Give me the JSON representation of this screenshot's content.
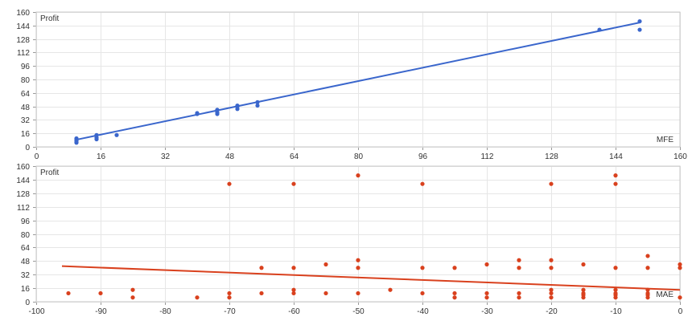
{
  "chart_data": [
    {
      "type": "scatter",
      "ylabel": "Profit",
      "xlabel": "MFE",
      "xlim": [
        0,
        160
      ],
      "ylim": [
        0,
        160
      ],
      "xticks": [
        0,
        16,
        32,
        48,
        64,
        80,
        96,
        112,
        128,
        144,
        160
      ],
      "yticks": [
        0,
        16,
        32,
        48,
        64,
        80,
        96,
        112,
        128,
        144,
        160
      ],
      "grid": true,
      "point_color": "#3a66cc",
      "line_color": "#3a66cc",
      "points": [
        [
          10,
          5
        ],
        [
          10,
          7
        ],
        [
          10,
          9
        ],
        [
          10,
          10
        ],
        [
          15,
          9
        ],
        [
          15,
          11
        ],
        [
          15,
          14
        ],
        [
          20,
          14
        ],
        [
          40,
          39
        ],
        [
          40,
          40
        ],
        [
          45,
          39
        ],
        [
          45,
          41
        ],
        [
          45,
          44
        ],
        [
          50,
          45
        ],
        [
          50,
          48
        ],
        [
          50,
          49
        ],
        [
          55,
          49
        ],
        [
          55,
          53
        ],
        [
          140,
          139
        ],
        [
          150,
          139
        ],
        [
          150,
          149
        ]
      ],
      "trend": {
        "x": [
          10,
          150
        ],
        "y": [
          8.5,
          147.5
        ]
      }
    },
    {
      "type": "scatter",
      "ylabel": "Profit",
      "xlabel": "MAE",
      "xlim": [
        -100,
        0
      ],
      "ylim": [
        0,
        160
      ],
      "xticks": [
        -100,
        -90,
        -80,
        -70,
        -60,
        -50,
        -40,
        -30,
        -20,
        -10,
        0
      ],
      "yticks": [
        0,
        16,
        32,
        48,
        64,
        80,
        96,
        112,
        128,
        144,
        160
      ],
      "grid": true,
      "point_color": "#d9411e",
      "line_color": "#d9411e",
      "points": [
        [
          -95,
          10
        ],
        [
          -90,
          10
        ],
        [
          -85,
          5
        ],
        [
          -85,
          14
        ],
        [
          -75,
          5
        ],
        [
          -70,
          5
        ],
        [
          -70,
          10
        ],
        [
          -70,
          139
        ],
        [
          -65,
          10
        ],
        [
          -65,
          40
        ],
        [
          -60,
          10
        ],
        [
          -60,
          14
        ],
        [
          -60,
          40
        ],
        [
          -60,
          139
        ],
        [
          -55,
          10
        ],
        [
          -55,
          44
        ],
        [
          -50,
          10
        ],
        [
          -50,
          40
        ],
        [
          -50,
          49
        ],
        [
          -50,
          149
        ],
        [
          -45,
          14
        ],
        [
          -40,
          10
        ],
        [
          -40,
          40
        ],
        [
          -40,
          139
        ],
        [
          -35,
          5
        ],
        [
          -35,
          10
        ],
        [
          -35,
          40
        ],
        [
          -30,
          5
        ],
        [
          -30,
          10
        ],
        [
          -30,
          44
        ],
        [
          -25,
          5
        ],
        [
          -25,
          10
        ],
        [
          -25,
          40
        ],
        [
          -25,
          49
        ],
        [
          -20,
          5
        ],
        [
          -20,
          10
        ],
        [
          -20,
          14
        ],
        [
          -20,
          40
        ],
        [
          -20,
          49
        ],
        [
          -20,
          139
        ],
        [
          -15,
          5
        ],
        [
          -15,
          8
        ],
        [
          -15,
          10
        ],
        [
          -15,
          14
        ],
        [
          -15,
          44
        ],
        [
          -10,
          5
        ],
        [
          -10,
          8
        ],
        [
          -10,
          10
        ],
        [
          -10,
          14
        ],
        [
          -10,
          40
        ],
        [
          -10,
          139
        ],
        [
          -10,
          149
        ],
        [
          -5,
          5
        ],
        [
          -5,
          8
        ],
        [
          -5,
          10
        ],
        [
          -5,
          14
        ],
        [
          -5,
          40
        ],
        [
          -5,
          54
        ],
        [
          0,
          5
        ],
        [
          0,
          40
        ],
        [
          0,
          44
        ]
      ],
      "trend": {
        "x": [
          -96,
          0
        ],
        "y": [
          42,
          14
        ]
      }
    }
  ]
}
